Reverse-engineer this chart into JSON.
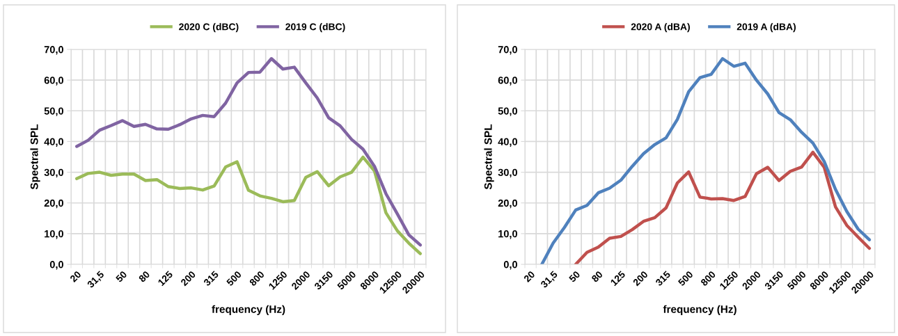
{
  "chart_data": [
    {
      "type": "line",
      "xlabel": "frequency (Hz)",
      "ylabel": "Spectral SPL",
      "categories": [
        "20",
        null,
        "31,5",
        null,
        "50",
        null,
        "80",
        null,
        "125",
        null,
        "200",
        null,
        "315",
        null,
        "500",
        null,
        "800",
        null,
        "1250",
        null,
        "2000",
        null,
        "3150",
        null,
        "5000",
        null,
        "8000",
        null,
        "12500",
        null,
        "20000"
      ],
      "series": [
        {
          "name": "2020 C (dBC)",
          "color": "#9bbb59",
          "values": [
            27.9,
            29.6,
            30.0,
            29.0,
            29.4,
            29.4,
            27.3,
            27.6,
            25.3,
            24.7,
            24.9,
            24.2,
            25.5,
            31.7,
            33.4,
            24.1,
            22.3,
            21.5,
            20.4,
            20.8,
            28.3,
            30.2,
            25.6,
            28.5,
            30.0,
            34.9,
            30.4,
            16.8,
            10.9,
            6.9,
            3.5
          ]
        },
        {
          "name": "2019 C (dBC)",
          "color": "#8064a2",
          "values": [
            38.4,
            40.4,
            43.7,
            45.2,
            46.8,
            44.9,
            45.6,
            44.1,
            44.0,
            45.5,
            47.4,
            48.5,
            48.1,
            52.5,
            59.1,
            62.5,
            62.6,
            67.0,
            63.6,
            64.2,
            59.1,
            54.2,
            47.7,
            45.1,
            40.7,
            37.5,
            31.9,
            23.0,
            16.4,
            9.6,
            6.3
          ]
        }
      ],
      "ylim": [
        0,
        70
      ],
      "yticks": [
        {
          "value": 0,
          "label": "0,0"
        },
        {
          "value": 10,
          "label": "10,0"
        },
        {
          "value": 20,
          "label": "20,0"
        },
        {
          "value": 30,
          "label": "30,0"
        },
        {
          "value": 40,
          "label": "40,0"
        },
        {
          "value": 50,
          "label": "50,0"
        },
        {
          "value": 60,
          "label": "60,0"
        },
        {
          "value": 70,
          "label": "70,0"
        }
      ],
      "grid": true,
      "legend": "top",
      "line_style": "solid"
    },
    {
      "type": "line",
      "xlabel": "frequency (Hz)",
      "ylabel": "Spectral SPL",
      "categories": [
        "20",
        null,
        "31,5",
        null,
        "50",
        null,
        "80",
        null,
        "125",
        null,
        "200",
        null,
        "315",
        null,
        "500",
        null,
        "800",
        null,
        "1250",
        null,
        "2000",
        null,
        "3150",
        null,
        "5000",
        null,
        "8000",
        null,
        "12500",
        null,
        "20000"
      ],
      "series": [
        {
          "name": "2020 A (dBA)",
          "color": "#c0504d",
          "values": [
            null,
            null,
            null,
            null,
            0.0,
            3.9,
            5.6,
            8.5,
            9.1,
            11.3,
            14.0,
            15.2,
            18.4,
            26.5,
            30.1,
            21.9,
            21.3,
            21.4,
            20.8,
            22.1,
            29.5,
            31.6,
            27.3,
            30.3,
            31.7,
            36.5,
            31.6,
            18.7,
            12.7,
            8.9,
            5.2
          ]
        },
        {
          "name": "2019 A (dBA)",
          "color": "#4f81bd",
          "values": [
            null,
            0.0,
            6.9,
            12.0,
            17.7,
            19.2,
            23.3,
            24.8,
            27.4,
            31.9,
            36.0,
            39.0,
            41.2,
            47.2,
            56.2,
            60.8,
            61.9,
            67.0,
            64.5,
            65.5,
            60.0,
            55.5,
            49.4,
            47.1,
            43.0,
            39.5,
            33.5,
            24.4,
            17.2,
            11.5,
            8.0
          ]
        }
      ],
      "ylim": [
        0,
        70
      ],
      "yticks": [
        {
          "value": 0,
          "label": "0,0"
        },
        {
          "value": 10,
          "label": "10,0"
        },
        {
          "value": 20,
          "label": "20,0"
        },
        {
          "value": 30,
          "label": "30,0"
        },
        {
          "value": 40,
          "label": "40,0"
        },
        {
          "value": 50,
          "label": "50,0"
        },
        {
          "value": 60,
          "label": "60,0"
        },
        {
          "value": 70,
          "label": "70,0"
        }
      ],
      "grid": true,
      "legend": "top",
      "line_style": "solid"
    }
  ]
}
